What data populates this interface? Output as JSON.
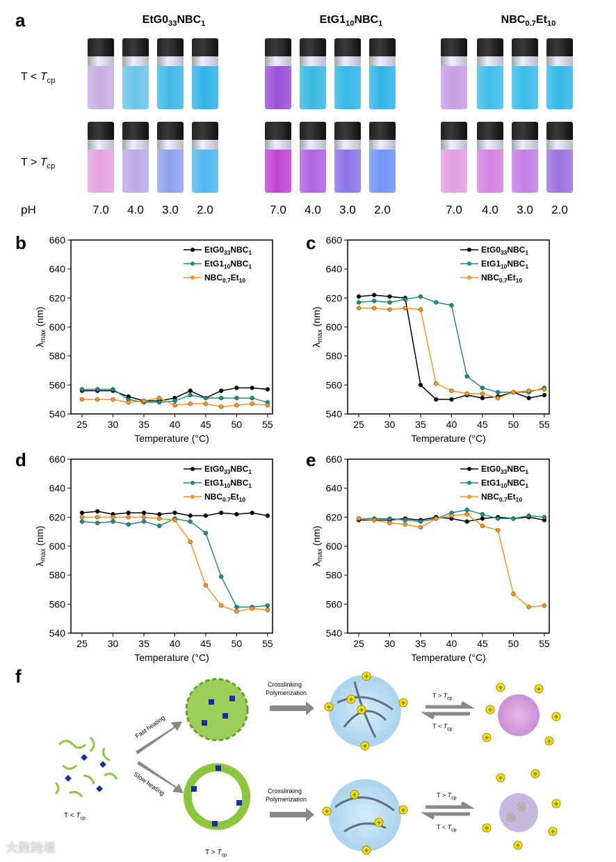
{
  "panel_a": {
    "label": "a",
    "groups": [
      {
        "t": [
          "EtG0",
          "33",
          "NBC",
          "1"
        ]
      },
      {
        "t": [
          "EtG1",
          "10",
          "NBC",
          "1"
        ]
      },
      {
        "t": [
          "NBC",
          "0.7",
          "Et",
          "10"
        ]
      }
    ],
    "row_low": {
      "a": "T < ",
      "b": "T",
      "c": "cp"
    },
    "row_high": {
      "a": "T > ",
      "b": "T",
      "c": "cp"
    },
    "ph_label": "pH",
    "ph_values": [
      "7.0",
      "4.0",
      "3.0",
      "2.0"
    ],
    "colors_low": [
      [
        "#c9aee2",
        "#6cc6e8",
        "#42b9e8",
        "#33b3e8"
      ],
      [
        "#9a52d8",
        "#3bb9e2",
        "#36b6e6",
        "#31b5e6"
      ],
      [
        "#c69fe6",
        "#42bee9",
        "#39bce9",
        "#32b8e9"
      ]
    ],
    "colors_high": [
      [
        "#e5a3e1",
        "#bbaae8",
        "#90a2ef",
        "#52b7f1"
      ],
      [
        "#c045d2",
        "#b064e1",
        "#8b74e7",
        "#7195f5"
      ],
      [
        "#e39fe1",
        "#d384e1",
        "#c380e1",
        "#9c74e2"
      ]
    ]
  },
  "panel_labels": {
    "b": "b",
    "c": "c",
    "d": "d",
    "e": "e",
    "f": "f"
  },
  "chart_data": [
    {
      "id": "b",
      "type": "line",
      "xlabel": "Temperature (°C)",
      "ylabel": [
        "λ",
        "max",
        " (nm)"
      ],
      "xlim": [
        23.2,
        55.8
      ],
      "ylim": [
        540,
        660
      ],
      "xticks": [
        25,
        30,
        35,
        40,
        45,
        50,
        55
      ],
      "yticks": [
        540,
        560,
        580,
        600,
        620,
        640,
        660
      ],
      "legend": "top-right",
      "x": [
        25,
        27.5,
        30,
        32.5,
        35,
        37.5,
        40,
        42.5,
        45,
        47.5,
        50,
        52.5,
        55
      ],
      "series": [
        {
          "name": [
            "EtG0",
            "33",
            "NBC",
            "1"
          ],
          "color": "#000000",
          "values": [
            556,
            556,
            556,
            552,
            549,
            549,
            551,
            556,
            551,
            556,
            558,
            558,
            557
          ]
        },
        {
          "name": [
            "EtG1",
            "10",
            "NBC",
            "1"
          ],
          "color": "#1e8c86",
          "values": [
            557,
            557,
            557,
            550,
            548,
            548,
            549,
            553,
            551,
            551,
            551,
            551,
            548
          ]
        },
        {
          "name": [
            "NBC",
            "0.7",
            "Et",
            "10"
          ],
          "color": "#f7941d",
          "values": [
            550,
            550,
            550,
            548,
            549,
            551,
            546,
            547,
            547,
            545,
            546,
            547,
            546
          ]
        }
      ]
    },
    {
      "id": "c",
      "type": "line",
      "xlabel": "Temperature (°C)",
      "ylabel": [
        "λ",
        "max",
        " (nm)"
      ],
      "xlim": [
        23.2,
        55.8
      ],
      "ylim": [
        540,
        660
      ],
      "xticks": [
        25,
        30,
        35,
        40,
        45,
        50,
        55
      ],
      "yticks": [
        540,
        560,
        580,
        600,
        620,
        640,
        660
      ],
      "legend": "top-right",
      "x": [
        25,
        27.5,
        30,
        32.5,
        35,
        37.5,
        40,
        42.5,
        45,
        47.5,
        50,
        52.5,
        55
      ],
      "series": [
        {
          "name": [
            "EtG0",
            "33",
            "NBC",
            "1"
          ],
          "color": "#000000",
          "values": [
            621,
            622,
            621,
            620,
            560,
            550,
            550,
            553,
            551,
            552,
            555,
            551,
            553
          ]
        },
        {
          "name": [
            "EtG1",
            "10",
            "NBC",
            "1"
          ],
          "color": "#1e8c86",
          "values": [
            617,
            618,
            617,
            619,
            621,
            617,
            615,
            566,
            558,
            555,
            555,
            555,
            558
          ]
        },
        {
          "name": [
            "NBC",
            "0.7",
            "Et",
            "10"
          ],
          "color": "#f7941d",
          "values": [
            613,
            613,
            612,
            613,
            612,
            561,
            556,
            554,
            554,
            551,
            555,
            556,
            557
          ]
        }
      ]
    },
    {
      "id": "d",
      "type": "line",
      "xlabel": "Temperature (°C)",
      "ylabel": [
        "λ",
        "max",
        " (nm)"
      ],
      "xlim": [
        23.2,
        55.8
      ],
      "ylim": [
        540,
        660
      ],
      "xticks": [
        25,
        30,
        35,
        40,
        45,
        50,
        55
      ],
      "yticks": [
        540,
        560,
        580,
        600,
        620,
        640,
        660
      ],
      "legend": "top-right",
      "x": [
        25,
        27.5,
        30,
        32.5,
        35,
        37.5,
        40,
        42.5,
        45,
        47.5,
        50,
        52.5,
        55
      ],
      "series": [
        {
          "name": [
            "EtG0",
            "33",
            "NBC",
            "1"
          ],
          "color": "#000000",
          "values": [
            623,
            624,
            622,
            623,
            623,
            622,
            623,
            621,
            621,
            623,
            622,
            623,
            621
          ]
        },
        {
          "name": [
            "EtG1",
            "10",
            "NBC",
            "1"
          ],
          "color": "#1e8c86",
          "values": [
            617,
            616,
            617,
            615,
            617,
            614,
            619,
            617,
            609,
            579,
            558,
            558,
            559
          ]
        },
        {
          "name": [
            "NBC",
            "0.7",
            "Et",
            "10"
          ],
          "color": "#f7941d",
          "values": [
            620,
            620,
            620,
            620,
            620,
            619,
            618,
            603,
            573,
            559,
            555,
            557,
            556
          ]
        }
      ]
    },
    {
      "id": "e",
      "type": "line",
      "xlabel": "Temperature (°C)",
      "ylabel": [
        "λ",
        "max",
        " (nm)"
      ],
      "xlim": [
        23.2,
        55.8
      ],
      "ylim": [
        540,
        660
      ],
      "xticks": [
        25,
        30,
        35,
        40,
        45,
        50,
        55
      ],
      "yticks": [
        540,
        560,
        580,
        600,
        620,
        640,
        660
      ],
      "legend": "top-right",
      "x": [
        25,
        27.5,
        30,
        32.5,
        35,
        37.5,
        40,
        42.5,
        45,
        47.5,
        50,
        52.5,
        55
      ],
      "series": [
        {
          "name": [
            "EtG0",
            "33",
            "NBC",
            "1"
          ],
          "color": "#000000",
          "values": [
            618,
            618,
            618,
            619,
            618,
            620,
            619,
            617,
            619,
            620,
            619,
            620,
            618
          ]
        },
        {
          "name": [
            "EtG1",
            "10",
            "NBC",
            "1"
          ],
          "color": "#1e8c86",
          "values": [
            619,
            619,
            619,
            618,
            617,
            619,
            623,
            625,
            622,
            619,
            619,
            621,
            620
          ]
        },
        {
          "name": [
            "NBC",
            "0.7",
            "Et",
            "10"
          ],
          "color": "#f7941d",
          "values": [
            619,
            618,
            616,
            615,
            613,
            619,
            621,
            622,
            614,
            611,
            567,
            558,
            559
          ]
        }
      ]
    }
  ],
  "panel_f": {
    "fast": "Fast heating",
    "slow": "Slow heating",
    "cross1": "Crosslinking",
    "poly1": "Polymerization",
    "cross2": "Crosslinking",
    "poly2": "Polymerization",
    "gt": "T > ",
    "lt": "T < ",
    "T": "T",
    "cp": "cp"
  },
  "watermark": "大数跨境"
}
